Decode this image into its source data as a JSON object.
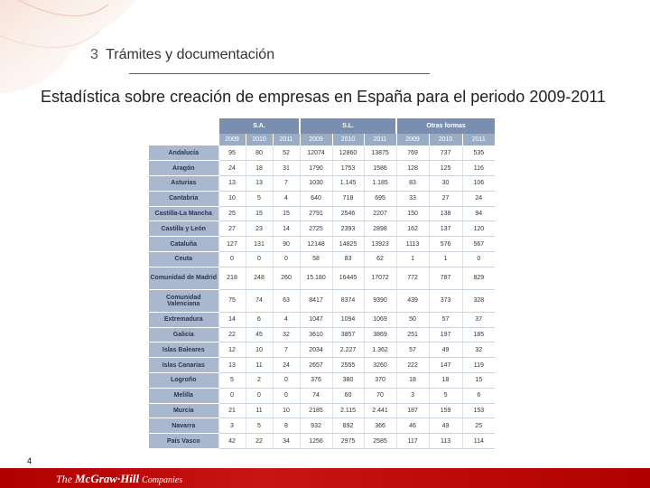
{
  "header": {
    "section_number": "3",
    "section_title": "Trámites y documentación"
  },
  "subtitle": "Estadística sobre creación de empresas en España para el periodo 2009-2011",
  "table": {
    "groups": [
      "S.A.",
      "S.L.",
      "Otras formas"
    ],
    "years": [
      "2009",
      "2010",
      "2011",
      "2009",
      "2010",
      "2011",
      "2009",
      "2010",
      "2011"
    ],
    "rows": [
      {
        "label": "Andalucía",
        "values": [
          "95",
          "80",
          "52",
          "12074",
          "12860",
          "13875",
          "769",
          "737",
          "535"
        ]
      },
      {
        "label": "Aragón",
        "values": [
          "24",
          "18",
          "31",
          "1790",
          "1753",
          "1586",
          "128",
          "125",
          "116"
        ]
      },
      {
        "label": "Asturias",
        "values": [
          "13",
          "13",
          "7",
          "1030",
          "1.145",
          "1.185",
          "83",
          "30",
          "106"
        ]
      },
      {
        "label": "Cantabria",
        "values": [
          "10",
          "5",
          "4",
          "640",
          "718",
          "695",
          "33",
          "27",
          "24"
        ]
      },
      {
        "label": "Castilla-La Mancha",
        "values": [
          "25",
          "15",
          "15",
          "2791",
          "2546",
          "2207",
          "150",
          "138",
          "94"
        ]
      },
      {
        "label": "Castilla y León",
        "values": [
          "27",
          "23",
          "14",
          "2725",
          "2393",
          "2898",
          "162",
          "137",
          "120"
        ]
      },
      {
        "label": "Cataluña",
        "values": [
          "127",
          "131",
          "90",
          "12148",
          "14825",
          "13923",
          "1113",
          "576",
          "567"
        ]
      },
      {
        "label": "Ceuta",
        "values": [
          "0",
          "0",
          "0",
          "58",
          "83",
          "62",
          "1",
          "1",
          "0"
        ]
      },
      {
        "label": "Comunidad de Madrid",
        "values": [
          "218",
          "248",
          "260",
          "15.180",
          "16445",
          "17072",
          "772",
          "787",
          "829"
        ]
      },
      {
        "label": "Comunidad Valenciana",
        "values": [
          "75",
          "74",
          "63",
          "8417",
          "8374",
          "9390",
          "439",
          "373",
          "328"
        ]
      },
      {
        "label": "Extremadura",
        "values": [
          "14",
          "6",
          "4",
          "1047",
          "1094",
          "1069",
          "50",
          "57",
          "37"
        ]
      },
      {
        "label": "Galicia",
        "values": [
          "22",
          "45",
          "32",
          "3610",
          "3857",
          "3869",
          "251",
          "197",
          "185"
        ]
      },
      {
        "label": "Islas Baleares",
        "values": [
          "12",
          "10",
          "7",
          "2034",
          "2.227",
          "1.362",
          "57",
          "49",
          "32"
        ]
      },
      {
        "label": "Islas Canarias",
        "values": [
          "13",
          "11",
          "24",
          "2657",
          "2555",
          "3260",
          "222",
          "147",
          "119"
        ]
      },
      {
        "label": "Logroño",
        "values": [
          "5",
          "2",
          "0",
          "376",
          "380",
          "370",
          "18",
          "18",
          "15"
        ]
      },
      {
        "label": "Melilla",
        "values": [
          "0",
          "0",
          "0",
          "74",
          "60",
          "70",
          "3",
          "5",
          "6"
        ]
      },
      {
        "label": "Murcia",
        "values": [
          "21",
          "11",
          "10",
          "2185",
          "2.115",
          "2.441",
          "187",
          "159",
          "153"
        ]
      },
      {
        "label": "Navarra",
        "values": [
          "3",
          "5",
          "8",
          "932",
          "892",
          "366",
          "46",
          "49",
          "25"
        ]
      },
      {
        "label": "País Vasco",
        "values": [
          "42",
          "22",
          "34",
          "1256",
          "2975",
          "2585",
          "117",
          "113",
          "114"
        ]
      }
    ]
  },
  "page_number": "4",
  "footer": {
    "prefix": "The",
    "brand": "McGraw·Hill",
    "suffix": "Companies"
  },
  "colors": {
    "accent_red": "#c0392b",
    "footer_red": "#b00000",
    "table_header": "#7a8fb0",
    "table_label": "#a9b8cf"
  }
}
